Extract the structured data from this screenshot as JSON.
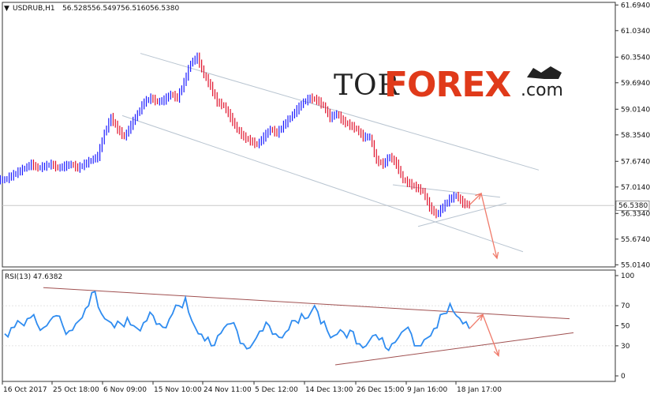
{
  "chart_data": [
    {
      "type": "candlestick",
      "title": "USDRUB,H1",
      "ohlc": [
        "56.5285",
        "56.5497",
        "56.5160",
        "56.5380"
      ],
      "current_price": "56.5380",
      "y_ticks": [
        "61.6940",
        "61.0340",
        "60.3540",
        "59.6940",
        "59.0140",
        "58.3540",
        "57.6740",
        "57.0140",
        "56.3340",
        "55.6740",
        "55.0140"
      ],
      "ylim": [
        55.0,
        61.7
      ],
      "x_ticks": [
        "16 Oct 2017",
        "25 Oct 18:00",
        "6 Nov 09:00",
        "15 Nov 10:00",
        "24 Nov 11:00",
        "5 Dec 12:00",
        "14 Dec 13:00",
        "26 Dec 15:00",
        "9 Jan 16:00",
        "18 Jan 17:00"
      ],
      "series": [
        {
          "close": [
            57.2,
            57.3,
            57.4,
            57.5,
            57.6,
            57.5,
            57.55,
            57.6,
            57.5,
            57.55,
            57.6,
            57.5,
            57.6,
            57.7,
            57.8,
            58.4,
            58.8,
            58.5,
            58.3,
            58.6,
            58.9,
            59.2,
            59.3,
            59.2,
            59.25,
            59.4,
            59.3,
            59.7,
            60.2,
            60.35,
            59.9,
            59.6,
            59.2,
            59.1,
            58.8,
            58.5,
            58.3,
            58.2,
            58.1,
            58.3,
            58.5,
            58.4,
            58.6,
            58.8,
            59.0,
            59.2,
            59.3,
            59.25,
            59.1,
            58.8,
            58.9,
            58.7,
            58.6,
            58.5,
            58.3,
            58.3,
            57.7,
            57.6,
            57.8,
            57.6,
            57.2,
            57.1,
            57.0,
            56.9,
            56.5,
            56.3,
            56.5,
            56.7,
            56.8,
            56.6,
            56.55
          ]
        }
      ],
      "channel_lines_color": "#b8c4d0",
      "forecast_arrow_color": "#f07a6a",
      "bull_color": "#1a1aff",
      "bear_color": "#e0102a"
    },
    {
      "type": "line",
      "title": "RSI(13) 47.6382",
      "y_ticks": [
        "100",
        "70",
        "50",
        "30",
        "0"
      ],
      "ylim": [
        0,
        100
      ],
      "series": [
        {
          "values": [
            42,
            48,
            55,
            50,
            58,
            52,
            48,
            55,
            60,
            50,
            45,
            52,
            58,
            70,
            84,
            62,
            55,
            48,
            52,
            58,
            50,
            45,
            55,
            60,
            52,
            48,
            62,
            70,
            78,
            55,
            42,
            35,
            30,
            40,
            48,
            52,
            45,
            32,
            28,
            38,
            45,
            50,
            42,
            38,
            46,
            55,
            62,
            58,
            70,
            52,
            45,
            40,
            46,
            38,
            44,
            32,
            30,
            40,
            36,
            28,
            32,
            38,
            46,
            42,
            30,
            36,
            40,
            48,
            62,
            72,
            60,
            52,
            47
          ]
        }
      ],
      "line_color": "#2f8cf0",
      "trend_line_color": "#a05050"
    }
  ],
  "watermark": {
    "part1": "TOR",
    "part2": "FOREX",
    "part3": ".com"
  }
}
